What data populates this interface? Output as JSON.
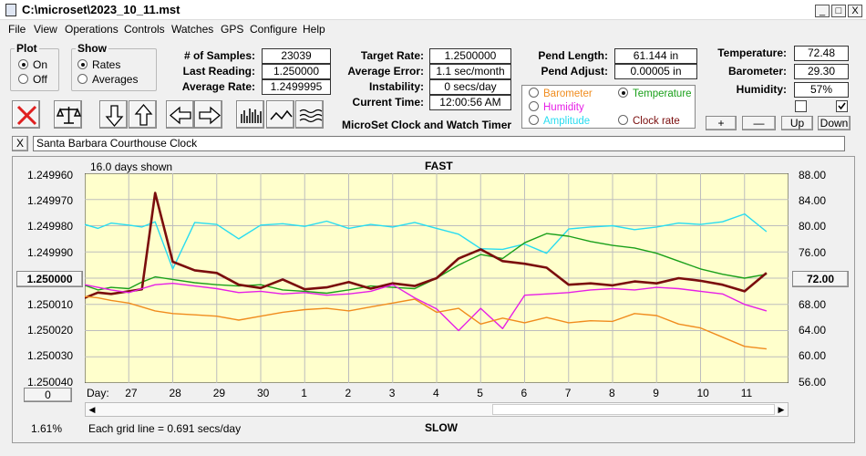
{
  "window": {
    "title": "C:\\microset\\2023_10_11.mst",
    "min": "_",
    "max": "□",
    "close": "X"
  },
  "menu": [
    "File",
    "View",
    "Operations",
    "Controls",
    "Watches",
    "GPS",
    "Configure",
    "Help"
  ],
  "plot_group": {
    "title": "Plot",
    "options": [
      "On",
      "Off"
    ],
    "selected": "On"
  },
  "show_group": {
    "title": "Show",
    "options": [
      "Rates",
      "Averages"
    ],
    "selected": "Rates"
  },
  "stats": {
    "samples_label": "# of Samples:",
    "samples": "23039",
    "last_reading_label": "Last Reading:",
    "last_reading": "1.250000",
    "average_rate_label": "Average Rate:",
    "average_rate": "1.2499995",
    "target_rate_label": "Target Rate:",
    "target_rate": "1.2500000",
    "average_error_label": "Average Error:",
    "average_error": "1.1 sec/month",
    "instability_label": "Instability:",
    "instability": "0 secs/day",
    "current_time_label": "Current Time:",
    "current_time": "12:00:56 AM",
    "pend_length_label": "Pend Length:",
    "pend_length": "61.144 in",
    "pend_adjust_label": "Pend Adjust:",
    "pend_adjust": "0.00005 in",
    "temperature_label": "Temperature:",
    "temperature": "72.48",
    "barometer_label": "Barometer:",
    "barometer": "29.30",
    "humidity_label": "Humidity:",
    "humidity": "57%"
  },
  "app_caption": "MicroSet Clock and Watch Timer",
  "series_selector": [
    {
      "name": "Barometer",
      "color": "#f08c1e",
      "selected": false
    },
    {
      "name": "Temperature",
      "color": "#1aa01a",
      "selected": true
    },
    {
      "name": "Humidity",
      "color": "#e61ee6",
      "selected": false
    },
    {
      "name": "Clock rate",
      "color": "#7a0d0d",
      "selected": false
    },
    {
      "name": "Amplitude",
      "color": "#28dcf0",
      "selected": false
    }
  ],
  "scale_buttons": {
    "plus": "+",
    "minus": "—",
    "up": "Up",
    "down": "Down"
  },
  "clock_name": "Santa Barbara Courthouse Clock",
  "clear_button": "X",
  "chart_data": {
    "type": "line",
    "title_top": "FAST",
    "title_bottom": "SLOW",
    "days_shown": "16.0 days shown",
    "grid_note": "Each grid line = 0.691 secs/day",
    "left_ticks": [
      "1.249960",
      "1.249970",
      "1.249980",
      "1.249990",
      "1.250000",
      "1.250010",
      "1.250020",
      "1.250030",
      "1.250040"
    ],
    "left_ylim": [
      1.24996,
      1.25004
    ],
    "left_axis_inverted": true,
    "right_ticks": [
      "88.00",
      "84.00",
      "80.00",
      "76.00",
      "72.00",
      "68.00",
      "64.00",
      "60.00",
      "56.00"
    ],
    "right_ylim": [
      56,
      88
    ],
    "x_label": "Day:",
    "x_ticks": [
      "27",
      "28",
      "29",
      "30",
      "1",
      "2",
      "3",
      "4",
      "5",
      "6",
      "7",
      "8",
      "9",
      "10",
      "11"
    ],
    "x": [
      0,
      0.3,
      0.6,
      1,
      1.3,
      1.6,
      2,
      2.5,
      3,
      3.5,
      4,
      4.5,
      5,
      5.5,
      6,
      6.5,
      7,
      7.5,
      8,
      8.5,
      9,
      9.5,
      10,
      10.5,
      11,
      11.5,
      12,
      12.5,
      13,
      13.5,
      14,
      14.5,
      15,
      15.5
    ],
    "series": [
      {
        "name": "Amplitude",
        "color": "#28dcf0",
        "values": [
          80.2,
          79.6,
          80.4,
          80.1,
          79.8,
          80.6,
          73.4,
          80.5,
          80.2,
          78.0,
          80.1,
          80.3,
          79.9,
          80.7,
          79.6,
          80.2,
          79.8,
          80.5,
          79.6,
          78.7,
          76.5,
          76.4,
          77.2,
          75.8,
          79.5,
          79.8,
          80.0,
          79.4,
          79.8,
          80.4,
          80.2,
          80.6,
          81.8,
          79.1
        ]
      },
      {
        "name": "Temperature",
        "color": "#1aa01a",
        "values": [
          70.9,
          70.2,
          70.6,
          70.4,
          71.4,
          72.2,
          71.8,
          71.3,
          71.0,
          70.8,
          71.0,
          70.2,
          70.0,
          69.7,
          70.2,
          70.8,
          70.6,
          70.4,
          72.0,
          74.0,
          75.6,
          75.0,
          77.4,
          78.8,
          78.4,
          77.6,
          77.0,
          76.6,
          75.8,
          74.6,
          73.4,
          72.6,
          72.0,
          72.6
        ]
      },
      {
        "name": "Clock rate",
        "color": "#7a0d0d",
        "values": [
          69.0,
          69.8,
          69.6,
          70.0,
          70.3,
          85.0,
          74.5,
          73.2,
          72.8,
          71.0,
          70.5,
          71.8,
          70.3,
          70.6,
          71.4,
          70.4,
          71.2,
          70.8,
          72.0,
          75.0,
          76.4,
          74.6,
          74.2,
          73.6,
          71.0,
          71.2,
          70.9,
          71.5,
          71.2,
          72.0,
          71.6,
          71.0,
          70.0,
          72.8
        ]
      },
      {
        "name": "Humidity",
        "color": "#e61ee6",
        "values": [
          71.0,
          70.6,
          70.2,
          69.8,
          70.4,
          71.0,
          71.2,
          70.8,
          70.4,
          69.8,
          70.0,
          69.6,
          69.8,
          69.4,
          69.6,
          70.0,
          71.0,
          69.0,
          67.3,
          64.0,
          67.4,
          64.3,
          69.4,
          69.6,
          69.8,
          70.2,
          70.4,
          70.2,
          70.6,
          70.4,
          70.0,
          69.6,
          68.0,
          67.0
        ]
      },
      {
        "name": "Barometer",
        "color": "#f08c1e",
        "values": [
          69.2,
          69.0,
          68.6,
          68.2,
          67.6,
          67.0,
          66.6,
          66.4,
          66.2,
          65.6,
          66.2,
          66.8,
          67.2,
          67.4,
          67.0,
          67.6,
          68.2,
          68.8,
          66.8,
          67.4,
          65.0,
          65.9,
          65.2,
          66.0,
          65.2,
          65.5,
          65.4,
          66.6,
          66.3,
          65.0,
          64.4,
          63.0,
          61.6,
          61.2
        ]
      }
    ]
  },
  "left_value_button": "1.250000",
  "right_value_button": "72.00",
  "zero_button": "0",
  "left_percent": "1.61%"
}
